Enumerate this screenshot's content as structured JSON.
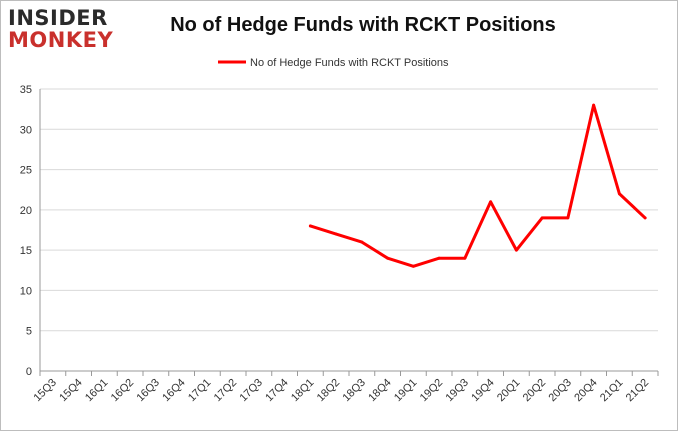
{
  "logo": {
    "line1": "INSIDER",
    "line2": "MONKEY"
  },
  "colors": {
    "series": "#ff0000",
    "grid": "#d9d9d9",
    "axis": "#999999",
    "logo_accent": "#c9302c"
  },
  "chart_data": {
    "type": "line",
    "title": "No of Hedge Funds with RCKT Positions",
    "xlabel": "",
    "ylabel": "",
    "categories": [
      "15Q3",
      "15Q4",
      "16Q1",
      "16Q2",
      "16Q3",
      "16Q4",
      "17Q1",
      "17Q2",
      "17Q3",
      "17Q4",
      "18Q1",
      "18Q2",
      "18Q3",
      "18Q4",
      "19Q1",
      "19Q2",
      "19Q3",
      "19Q4",
      "20Q1",
      "20Q2",
      "20Q3",
      "20Q4",
      "21Q1",
      "21Q2"
    ],
    "series": [
      {
        "name": "No of Hedge Funds with RCKT Positions",
        "values": [
          null,
          null,
          null,
          null,
          null,
          null,
          null,
          null,
          null,
          null,
          18,
          17,
          16,
          14,
          13,
          14,
          14,
          21,
          15,
          19,
          19,
          33,
          22,
          19
        ]
      }
    ],
    "ylim": [
      0,
      35
    ],
    "yticks": [
      0,
      5,
      10,
      15,
      20,
      25,
      30,
      35
    ],
    "grid": true,
    "legend": "top-center"
  }
}
